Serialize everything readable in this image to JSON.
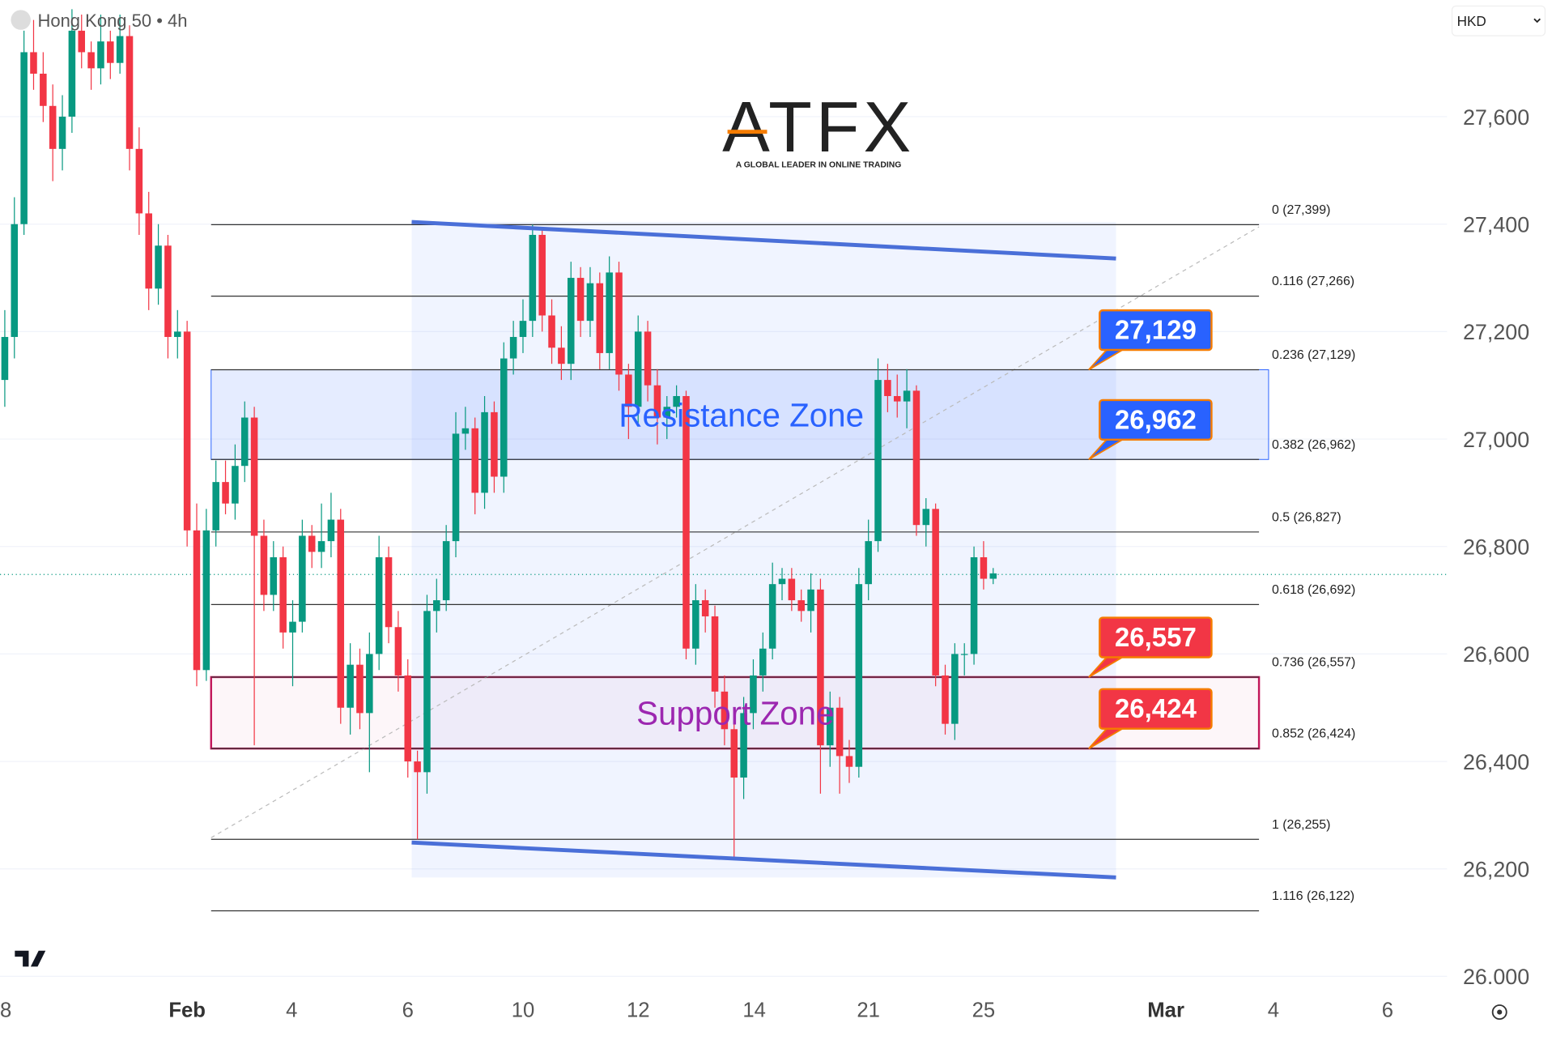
{
  "chart_data": {
    "type": "candlestick",
    "title": "Hong Kong 50 • 4h",
    "currency": "HKD",
    "logo": "ATFX",
    "logo_tagline": "A GLOBAL LEADER IN ONLINE TRADING",
    "colors": {
      "up": "#089981",
      "down": "#f23645"
    },
    "xlim": [
      -0.5,
      150.3
    ],
    "ylim": [
      25974,
      27817
    ],
    "xticks": [
      {
        "value": 0.1,
        "label": "8"
      },
      {
        "value": 19.0,
        "label": "Feb"
      },
      {
        "value": 29.9,
        "label": "4"
      },
      {
        "value": 42.0,
        "label": "6"
      },
      {
        "value": 54.0,
        "label": "10"
      },
      {
        "value": 66.0,
        "label": "12"
      },
      {
        "value": 78.1,
        "label": "14"
      },
      {
        "value": 90.0,
        "label": "21"
      },
      {
        "value": 102.0,
        "label": "25"
      },
      {
        "value": 121.0,
        "label": "Mar"
      },
      {
        "value": 132.2,
        "label": "4"
      },
      {
        "value": 144.1,
        "label": "6"
      }
    ],
    "yticks": [
      {
        "value": 26000,
        "label": "26.000"
      },
      {
        "value": 26200,
        "label": "26,200"
      },
      {
        "value": 26400,
        "label": "26,400"
      },
      {
        "value": 26600,
        "label": "26,600"
      },
      {
        "value": 26800,
        "label": "26,800"
      },
      {
        "value": 27000,
        "label": "27,000"
      },
      {
        "value": 27200,
        "label": "27,200"
      },
      {
        "value": 27400,
        "label": "27,400"
      },
      {
        "value": 27600,
        "label": "27,600"
      }
    ],
    "grid": true,
    "x": [
      0,
      1,
      2,
      3,
      4,
      5,
      6,
      7,
      8,
      9,
      10,
      11,
      12,
      13,
      14,
      15,
      16,
      17,
      18,
      19,
      20,
      21,
      22,
      23,
      24,
      25,
      26,
      27,
      28,
      29,
      30,
      31,
      32,
      33,
      34,
      35,
      36,
      37,
      38,
      39,
      40,
      41,
      42,
      43,
      44,
      45,
      46,
      47,
      48,
      49,
      50,
      51,
      52,
      53,
      54,
      55,
      56,
      57,
      58,
      59,
      60,
      61,
      62,
      63,
      64,
      65,
      66,
      67,
      68,
      69,
      70,
      71,
      72,
      73,
      74,
      75,
      76,
      77,
      78,
      79,
      80,
      81,
      82,
      83,
      84,
      85,
      86,
      87,
      88,
      89,
      90,
      91,
      92,
      93,
      94,
      95,
      96,
      97,
      98,
      99,
      100,
      101,
      102,
      103
    ],
    "ohlc": [
      [
        27110,
        27240,
        27060,
        27190
      ],
      [
        27190,
        27450,
        27150,
        27400
      ],
      [
        27400,
        27760,
        27380,
        27720
      ],
      [
        27720,
        27780,
        27650,
        27680
      ],
      [
        27680,
        27720,
        27590,
        27620
      ],
      [
        27620,
        27660,
        27480,
        27540
      ],
      [
        27540,
        27640,
        27500,
        27600
      ],
      [
        27600,
        27800,
        27570,
        27760
      ],
      [
        27760,
        27790,
        27690,
        27720
      ],
      [
        27720,
        27740,
        27650,
        27690
      ],
      [
        27690,
        27790,
        27660,
        27740
      ],
      [
        27740,
        27760,
        27670,
        27700
      ],
      [
        27700,
        27790,
        27680,
        27750
      ],
      [
        27750,
        27770,
        27500,
        27540
      ],
      [
        27540,
        27580,
        27380,
        27420
      ],
      [
        27420,
        27460,
        27240,
        27280
      ],
      [
        27280,
        27400,
        27250,
        27360
      ],
      [
        27360,
        27380,
        27150,
        27190
      ],
      [
        27190,
        27240,
        27150,
        27200
      ],
      [
        27200,
        27220,
        26800,
        26830
      ],
      [
        26830,
        26880,
        26540,
        26570
      ],
      [
        26570,
        26870,
        26550,
        26830
      ],
      [
        26830,
        26960,
        26800,
        26920
      ],
      [
        26920,
        26960,
        26860,
        26880
      ],
      [
        26880,
        26990,
        26850,
        26950
      ],
      [
        26950,
        27070,
        26920,
        27040
      ],
      [
        27040,
        27060,
        26430,
        26820
      ],
      [
        26820,
        26850,
        26680,
        26710
      ],
      [
        26710,
        26810,
        26680,
        26780
      ],
      [
        26780,
        26800,
        26610,
        26640
      ],
      [
        26640,
        26700,
        26540,
        26660
      ],
      [
        26660,
        26850,
        26640,
        26820
      ],
      [
        26820,
        26840,
        26760,
        26790
      ],
      [
        26790,
        26880,
        26760,
        26810
      ],
      [
        26810,
        26900,
        26780,
        26850
      ],
      [
        26850,
        26870,
        26470,
        26500
      ],
      [
        26500,
        26620,
        26450,
        26580
      ],
      [
        26580,
        26610,
        26460,
        26490
      ],
      [
        26490,
        26640,
        26380,
        26600
      ],
      [
        26600,
        26820,
        26570,
        26780
      ],
      [
        26780,
        26800,
        26620,
        26650
      ],
      [
        26650,
        26680,
        26530,
        26560
      ],
      [
        26560,
        26590,
        26370,
        26400
      ],
      [
        26400,
        26420,
        26255,
        26380
      ],
      [
        26380,
        26710,
        26340,
        26680
      ],
      [
        26680,
        26740,
        26640,
        26700
      ],
      [
        26700,
        26840,
        26680,
        26810
      ],
      [
        26810,
        27050,
        26780,
        27010
      ],
      [
        27010,
        27060,
        26980,
        27020
      ],
      [
        27020,
        27040,
        26860,
        26900
      ],
      [
        26900,
        27080,
        26870,
        27050
      ],
      [
        27050,
        27070,
        26900,
        26930
      ],
      [
        26930,
        27180,
        26900,
        27150
      ],
      [
        27150,
        27220,
        27120,
        27190
      ],
      [
        27190,
        27260,
        27160,
        27220
      ],
      [
        27220,
        27399,
        27190,
        27380
      ],
      [
        27380,
        27390,
        27200,
        27230
      ],
      [
        27230,
        27260,
        27140,
        27170
      ],
      [
        27170,
        27210,
        27110,
        27140
      ],
      [
        27140,
        27330,
        27110,
        27300
      ],
      [
        27300,
        27320,
        27190,
        27220
      ],
      [
        27220,
        27320,
        27190,
        27290
      ],
      [
        27290,
        27310,
        27130,
        27160
      ],
      [
        27160,
        27340,
        27130,
        27310
      ],
      [
        27310,
        27330,
        27090,
        27120
      ],
      [
        27120,
        27140,
        27000,
        27060
      ],
      [
        27060,
        27230,
        27030,
        27200
      ],
      [
        27200,
        27220,
        27070,
        27100
      ],
      [
        27100,
        27130,
        26990,
        27040
      ],
      [
        27040,
        27080,
        27000,
        27060
      ],
      [
        27060,
        27100,
        27040,
        27080
      ],
      [
        27080,
        27090,
        26590,
        26610
      ],
      [
        26610,
        26730,
        26580,
        26700
      ],
      [
        26700,
        26720,
        26640,
        26670
      ],
      [
        26670,
        26690,
        26500,
        26530
      ],
      [
        26530,
        26560,
        26430,
        26460
      ],
      [
        26460,
        26480,
        26220,
        26370
      ],
      [
        26370,
        26520,
        26330,
        26490
      ],
      [
        26490,
        26590,
        26460,
        26560
      ],
      [
        26560,
        26640,
        26530,
        26610
      ],
      [
        26610,
        26770,
        26590,
        26730
      ],
      [
        26730,
        26760,
        26700,
        26740
      ],
      [
        26740,
        26760,
        26680,
        26700
      ],
      [
        26700,
        26720,
        26660,
        26680
      ],
      [
        26680,
        26750,
        26640,
        26720
      ],
      [
        26720,
        26740,
        26340,
        26430
      ],
      [
        26430,
        26530,
        26390,
        26500
      ],
      [
        26500,
        26520,
        26340,
        26410
      ],
      [
        26410,
        26440,
        26360,
        26390
      ],
      [
        26390,
        26760,
        26370,
        26730
      ],
      [
        26730,
        26850,
        26700,
        26810
      ],
      [
        26810,
        27150,
        26790,
        27110
      ],
      [
        27110,
        27140,
        27050,
        27080
      ],
      [
        27080,
        27120,
        27040,
        27070
      ],
      [
        27070,
        27130,
        27020,
        27090
      ],
      [
        27090,
        27100,
        26820,
        26840
      ],
      [
        26840,
        26890,
        26800,
        26870
      ],
      [
        26870,
        26880,
        26540,
        26560
      ],
      [
        26560,
        26580,
        26450,
        26470
      ],
      [
        26470,
        26620,
        26440,
        26600
      ],
      [
        26600,
        26620,
        26560,
        26600
      ],
      [
        26600,
        26800,
        26580,
        26780
      ],
      [
        26780,
        26810,
        26720,
        26740
      ],
      [
        26740,
        26760,
        26730,
        26750
      ]
    ],
    "last_price": 26748,
    "fib": {
      "x": [
        21.5,
        130.7
      ],
      "levels": [
        {
          "value": 27399,
          "label": "0 (27,399)"
        },
        {
          "value": 27266,
          "label": "0.116 (27,266)"
        },
        {
          "value": 27129,
          "label": "0.236 (27,129)"
        },
        {
          "value": 26962,
          "label": "0.382 (26,962)"
        },
        {
          "value": 26827,
          "label": "0.5 (26,827)"
        },
        {
          "value": 26692,
          "label": "0.618 (26,692)"
        },
        {
          "value": 26557,
          "label": "0.736 (26,557)"
        },
        {
          "value": 26424,
          "label": "0.852 (26,424)"
        },
        {
          "value": 26255,
          "label": "1 (26,255)"
        },
        {
          "value": 26122,
          "label": "1.116 (26,122)"
        }
      ]
    },
    "fib_trend": {
      "x": [
        21.5,
        130.7
      ],
      "y": [
        26258,
        27395
      ]
    },
    "channel": {
      "x": [
        42.4,
        115.8
      ],
      "upper": [
        27404,
        27336
      ],
      "lower": [
        26249,
        26184
      ]
    },
    "zones": [
      {
        "label": "Resistance Zone",
        "from": 26962,
        "to": 27129,
        "color": "#2962ff",
        "x": [
          21.5,
          131.7
        ]
      },
      {
        "label": "Support Zone",
        "from": 26424,
        "to": 26557,
        "color": "#c2185b",
        "x": [
          21.5,
          130.7
        ]
      }
    ],
    "price_tags": [
      {
        "value": 27129,
        "label": "27,129",
        "color": "#2962ff"
      },
      {
        "value": 26962,
        "label": "26,962",
        "color": "#2962ff"
      },
      {
        "value": 26557,
        "label": "26,557",
        "color": "#f23645"
      },
      {
        "value": 26424,
        "label": "26,424",
        "color": "#f23645"
      }
    ]
  }
}
